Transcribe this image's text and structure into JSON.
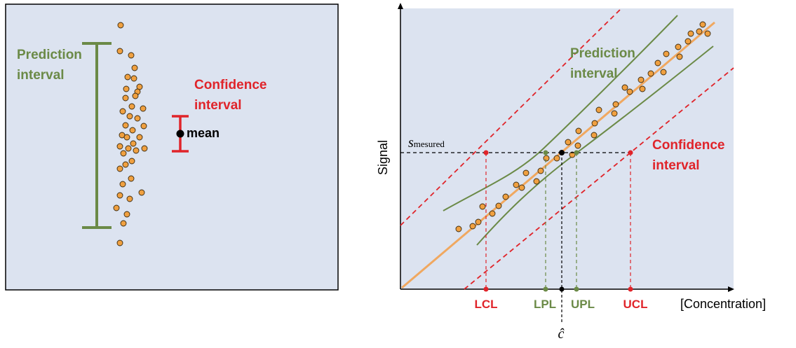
{
  "left_panel": {
    "prediction_label_line1": "Prediction",
    "prediction_label_line2": "interval",
    "confidence_label_line1": "Confidence",
    "confidence_label_line2": "interval",
    "mean_label": "mean"
  },
  "right_panel": {
    "y_axis_label": "Signal",
    "x_axis_label": "[Concentration]",
    "s_measured_symbol": "s",
    "s_measured_subscript": "mesured",
    "c_hat_label": "ĉ",
    "prediction_label_line1": "Prediction",
    "prediction_label_line2": "interval",
    "confidence_label_line1": "Confidence",
    "confidence_label_line2": "interval",
    "tick_labels": {
      "lcl": "LCL",
      "lpl": "LPL",
      "upl": "UPL",
      "ucl": "UCL"
    }
  },
  "colors": {
    "panel_bg": "#dce3f0",
    "green": "#6b8a47",
    "red": "#e0242a",
    "orange_line": "#f0a860",
    "dot_fill": "#f0a040",
    "black": "#000000"
  }
}
